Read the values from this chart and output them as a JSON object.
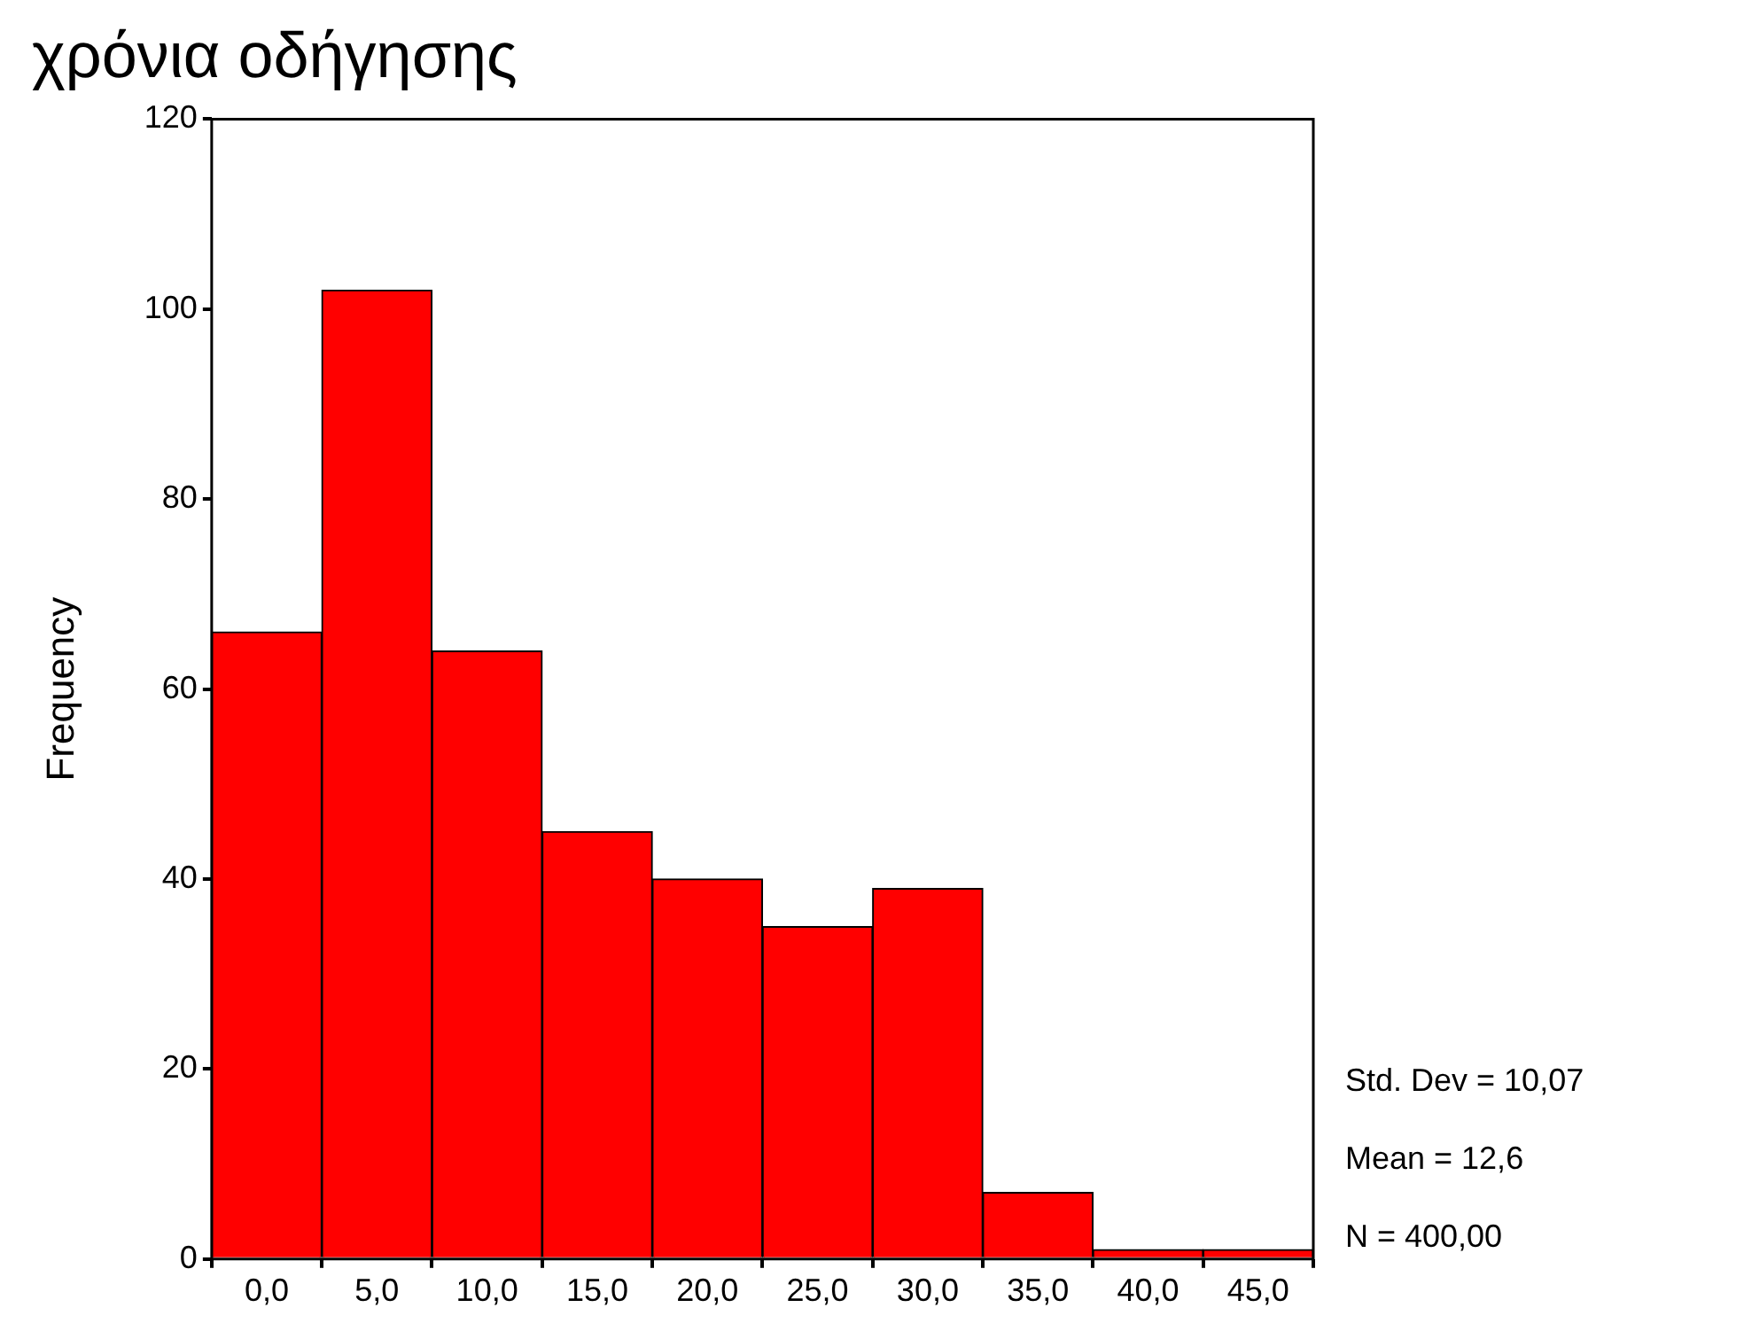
{
  "chart_data": {
    "type": "histogram",
    "title": "χρόνια οδήγησης",
    "ylabel": "Frequency",
    "bins": [
      -2.5,
      2.5,
      7.5,
      12.5,
      17.5,
      22.5,
      27.5,
      32.5,
      37.5,
      42.5,
      47.5
    ],
    "values": [
      66,
      102,
      64,
      45,
      40,
      35,
      39,
      7,
      1,
      1
    ],
    "color": "#ff0000",
    "xlim": [
      -2.5,
      47.5
    ],
    "xticks": [
      {
        "value": 0,
        "label": "0,0"
      },
      {
        "value": 5,
        "label": "5,0"
      },
      {
        "value": 10,
        "label": "10,0"
      },
      {
        "value": 15,
        "label": "15,0"
      },
      {
        "value": 20,
        "label": "20,0"
      },
      {
        "value": 25,
        "label": "25,0"
      },
      {
        "value": 30,
        "label": "30,0"
      },
      {
        "value": 35,
        "label": "35,0"
      },
      {
        "value": 40,
        "label": "40,0"
      },
      {
        "value": 45,
        "label": "45,0"
      }
    ],
    "ylim": [
      0,
      120
    ],
    "yticks": [
      0,
      20,
      40,
      60,
      80,
      100,
      120
    ],
    "grid": false,
    "legend": false,
    "annotations": [
      "Std. Dev = 10,07",
      "Mean = 12,6",
      "N = 400,00"
    ]
  }
}
